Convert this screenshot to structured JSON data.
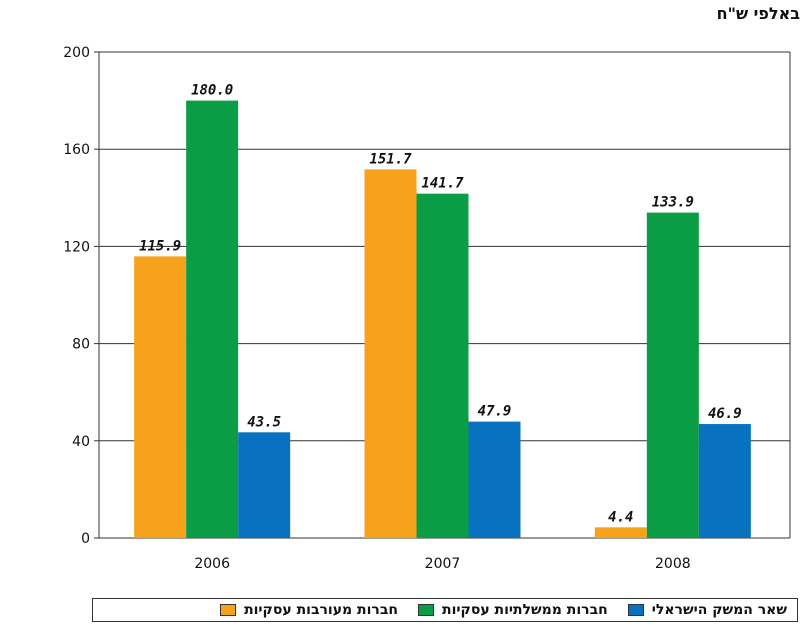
{
  "unit_label": "באלפי ש\"ח",
  "colors": {
    "series_1": "#F6A31B",
    "series_2": "#0B9D46",
    "series_3": "#0872C1",
    "axis": "#333333",
    "grid": "#333333"
  },
  "chart_data": {
    "type": "bar",
    "title": "",
    "xlabel": "",
    "ylabel": "באלפי ש\"ח",
    "categories": [
      "2006",
      "2007",
      "2008"
    ],
    "ylim": [
      0,
      200
    ],
    "yticks": [
      0,
      40,
      80,
      120,
      160,
      200
    ],
    "grid": true,
    "legend_position": "bottom",
    "series": [
      {
        "name": "חברות מעורבות עסקיות",
        "color": "#F6A31B",
        "values": [
          115.9,
          151.7,
          4.4
        ],
        "labels": [
          "115.9",
          "151.7",
          "4.4"
        ]
      },
      {
        "name": "חברות ממשלתיות עסקיות",
        "color": "#0B9D46",
        "values": [
          180.0,
          141.7,
          133.9
        ],
        "labels": [
          "180.0",
          "141.7",
          "133.9"
        ]
      },
      {
        "name": "שאר המשק הישראלי",
        "color": "#0872C1",
        "values": [
          43.5,
          47.9,
          46.9
        ],
        "labels": [
          "43.5",
          "47.9",
          "46.9"
        ]
      }
    ]
  }
}
